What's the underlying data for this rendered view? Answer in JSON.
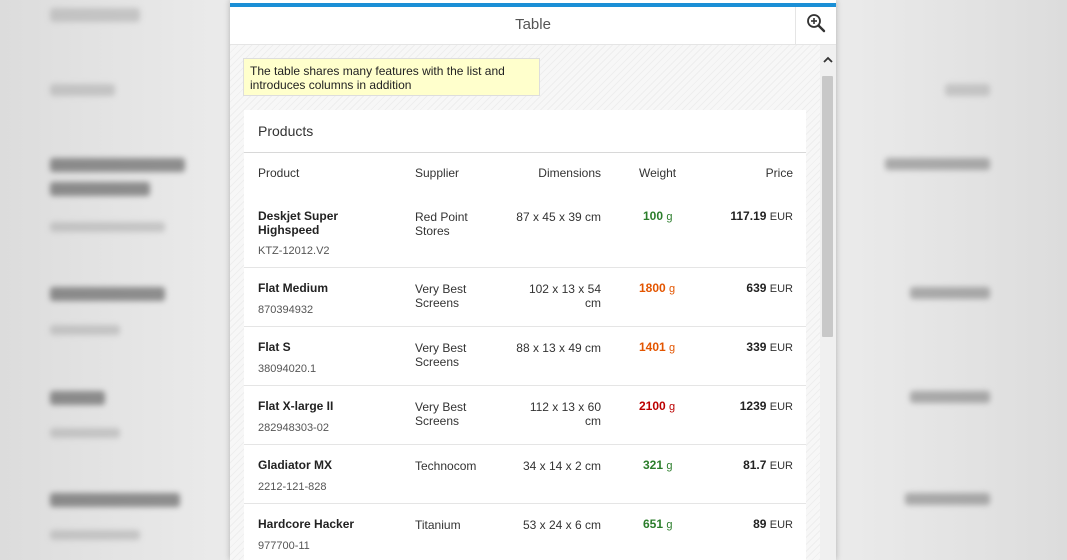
{
  "dialog": {
    "title": "Table",
    "zoom_icon": "zoom-in-icon"
  },
  "note": "The table shares many features with the list and introduces columns in addition",
  "table": {
    "title": "Products",
    "columns": {
      "product": "Product",
      "supplier": "Supplier",
      "dimensions": "Dimensions",
      "weight": "Weight",
      "price": "Price"
    },
    "rows": [
      {
        "name": "Deskjet Super Highspeed",
        "id": "KTZ-12012.V2",
        "supplier": "Red Point Stores",
        "dimensions": "87 x 45 x 39 cm",
        "weight": "100",
        "weight_unit": "g",
        "weight_state": "green",
        "price": "117.19",
        "currency": "EUR"
      },
      {
        "name": "Flat Medium",
        "id": "870394932",
        "supplier": "Very Best Screens",
        "dimensions": "102 x 13 x 54 cm",
        "weight": "1800",
        "weight_unit": "g",
        "weight_state": "orange",
        "price": "639",
        "currency": "EUR"
      },
      {
        "name": "Flat S",
        "id": "38094020.1",
        "supplier": "Very Best Screens",
        "dimensions": "88 x 13 x 49 cm",
        "weight": "1401",
        "weight_unit": "g",
        "weight_state": "orange",
        "price": "339",
        "currency": "EUR"
      },
      {
        "name": "Flat X-large II",
        "id": "282948303-02",
        "supplier": "Very Best Screens",
        "dimensions": "112 x 13 x 60 cm",
        "weight": "2100",
        "weight_unit": "g",
        "weight_state": "red",
        "price": "1239",
        "currency": "EUR"
      },
      {
        "name": "Gladiator MX",
        "id": "2212-121-828",
        "supplier": "Technocom",
        "dimensions": "34 x 14 x 2 cm",
        "weight": "321",
        "weight_unit": "g",
        "weight_state": "green",
        "price": "81.7",
        "currency": "EUR"
      },
      {
        "name": "Hardcore Hacker",
        "id": "977700-11",
        "supplier": "Titanium",
        "dimensions": "53 x 24 x 6 cm",
        "weight": "651",
        "weight_unit": "g",
        "weight_state": "green",
        "price": "89",
        "currency": "EUR"
      }
    ]
  },
  "colors": {
    "accent": "#1b8fd6",
    "success": "#2b7d2b",
    "warning": "#e35500",
    "error": "#bb0000",
    "note_bg": "#ffffcc"
  },
  "icons": {
    "zoom": "zoom-in-icon",
    "scroll_up": "chevron-up-icon"
  }
}
